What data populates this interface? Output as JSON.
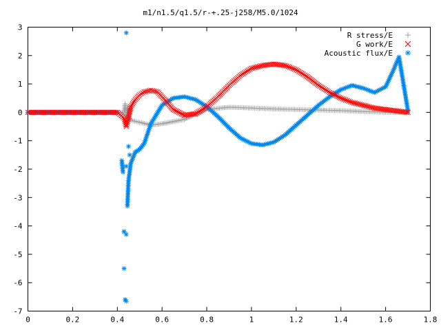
{
  "chart_data": {
    "type": "scatter",
    "title": "m1/n1.5/q1.5/r-+.25-j258/M5.0/1024",
    "xlabel": "",
    "ylabel": "",
    "xlim": [
      0,
      1.8
    ],
    "ylim": [
      -7,
      3
    ],
    "x_ticks": [
      "0",
      "0.2",
      "0.4",
      "0.6",
      "0.8",
      "1",
      "1.2",
      "1.4",
      "1.6",
      "1.8"
    ],
    "y_ticks": [
      "3",
      "2",
      "1",
      "0",
      "-1",
      "-2",
      "-3",
      "-4",
      "-5",
      "-6",
      "-7"
    ],
    "grid": false,
    "legend_position": "top-right",
    "series": [
      {
        "name": "R stress/E",
        "marker": "+",
        "color": "#a0a0a0",
        "x": [
          0.0,
          0.1,
          0.2,
          0.3,
          0.4,
          0.43,
          0.435,
          0.44,
          0.445,
          0.45,
          0.47,
          0.5,
          0.55,
          0.6,
          0.7,
          0.8,
          0.9,
          1.0,
          1.1,
          1.2,
          1.3,
          1.4,
          1.5,
          1.6,
          1.7
        ],
        "y": [
          0.0,
          0.0,
          0.0,
          0.0,
          0.0,
          0.0,
          0.3,
          -0.4,
          0.2,
          -0.2,
          -0.3,
          -0.35,
          -0.45,
          -0.4,
          -0.25,
          0.1,
          0.18,
          0.15,
          0.12,
          0.1,
          0.08,
          0.06,
          0.03,
          0.0,
          0.0
        ]
      },
      {
        "name": "G work/E",
        "marker": "x",
        "color": "#ff0000",
        "x": [
          0.0,
          0.1,
          0.2,
          0.3,
          0.4,
          0.43,
          0.44,
          0.45,
          0.46,
          0.48,
          0.5,
          0.52,
          0.55,
          0.58,
          0.6,
          0.65,
          0.7,
          0.75,
          0.8,
          0.85,
          0.9,
          0.95,
          1.0,
          1.05,
          1.1,
          1.15,
          1.2,
          1.25,
          1.3,
          1.35,
          1.4,
          1.45,
          1.5,
          1.55,
          1.6,
          1.65,
          1.7
        ],
        "y": [
          0.0,
          0.0,
          0.0,
          0.0,
          0.0,
          -0.2,
          -0.5,
          -0.2,
          0.2,
          0.45,
          0.62,
          0.72,
          0.78,
          0.72,
          0.55,
          0.1,
          -0.1,
          -0.05,
          0.2,
          0.55,
          0.95,
          1.3,
          1.55,
          1.65,
          1.7,
          1.65,
          1.5,
          1.25,
          0.95,
          0.7,
          0.5,
          0.35,
          0.25,
          0.15,
          0.1,
          0.05,
          0.0
        ]
      },
      {
        "name": "Acoustic flux/E",
        "marker": "*",
        "color": "#0088ee",
        "x": [
          0.0,
          0.1,
          0.2,
          0.3,
          0.4,
          0.42,
          0.425,
          0.43,
          0.435,
          0.44,
          0.445,
          0.45,
          0.46,
          0.47,
          0.48,
          0.5,
          0.52,
          0.55,
          0.6,
          0.65,
          0.7,
          0.75,
          0.8,
          0.85,
          0.9,
          0.95,
          1.0,
          1.05,
          1.1,
          1.15,
          1.2,
          1.25,
          1.3,
          1.35,
          1.4,
          1.45,
          1.5,
          1.55,
          1.6,
          1.63,
          1.66,
          1.68,
          1.7
        ],
        "y": [
          0.0,
          0.0,
          0.0,
          0.0,
          0.0,
          -1.7,
          -2.1,
          -4.2,
          -6.6,
          2.8,
          -3.3,
          -2.4,
          -1.8,
          -1.6,
          -1.4,
          -1.3,
          -1.1,
          -0.4,
          0.25,
          0.5,
          0.55,
          0.45,
          0.2,
          -0.15,
          -0.55,
          -0.9,
          -1.1,
          -1.15,
          -1.05,
          -0.8,
          -0.45,
          -0.1,
          0.25,
          0.55,
          0.8,
          0.95,
          0.85,
          0.7,
          0.9,
          1.4,
          1.95,
          1.0,
          0.05
        ]
      }
    ],
    "scatter_annotations": {
      "acoustic_flux_extra_points": [
        {
          "x": 0.43,
          "y": -4.2
        },
        {
          "x": 0.44,
          "y": -4.3
        },
        {
          "x": 0.43,
          "y": -5.5
        },
        {
          "x": 0.435,
          "y": -6.6
        },
        {
          "x": 0.44,
          "y": -6.65
        },
        {
          "x": 0.44,
          "y": -1.9
        },
        {
          "x": 0.45,
          "y": -1.2
        },
        {
          "x": 0.455,
          "y": -1.5
        }
      ]
    }
  }
}
